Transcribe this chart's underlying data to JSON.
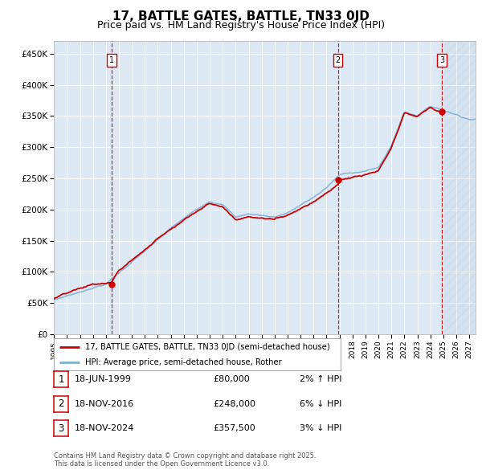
{
  "title": "17, BATTLE GATES, BATTLE, TN33 0JD",
  "subtitle": "Price paid vs. HM Land Registry's House Price Index (HPI)",
  "title_fontsize": 11,
  "subtitle_fontsize": 9,
  "background_color": "#ffffff",
  "plot_bg_color": "#dce9f5",
  "grid_color": "#ffffff",
  "ylabel_ticks": [
    "£0",
    "£50K",
    "£100K",
    "£150K",
    "£200K",
    "£250K",
    "£300K",
    "£350K",
    "£400K",
    "£450K"
  ],
  "ytick_values": [
    0,
    50000,
    100000,
    150000,
    200000,
    250000,
    300000,
    350000,
    400000,
    450000
  ],
  "ylim": [
    0,
    470000
  ],
  "xlim_start": 1995.0,
  "xlim_end": 2027.5,
  "sale_dates": [
    1999.46,
    2016.88,
    2024.88
  ],
  "sale_prices": [
    80000,
    248000,
    357500
  ],
  "sale_labels": [
    "1",
    "2",
    "3"
  ],
  "sale_date_strs": [
    "18-JUN-1999",
    "18-NOV-2016",
    "18-NOV-2024"
  ],
  "sale_pct": [
    "2%",
    "6%",
    "3%"
  ],
  "sale_direction": [
    "↑",
    "↓",
    "↓"
  ],
  "red_line_color": "#cc0000",
  "blue_line_color": "#7bafd4",
  "dashed_line_color": "#cc0000",
  "dot_color": "#cc0000",
  "legend_label_red": "17, BATTLE GATES, BATTLE, TN33 0JD (semi-detached house)",
  "legend_label_blue": "HPI: Average price, semi-detached house, Rother",
  "footer": "Contains HM Land Registry data © Crown copyright and database right 2025.\nThis data is licensed under the Open Government Licence v3.0.",
  "hatched_area_start": 2024.88,
  "hatched_area_end": 2027.5
}
